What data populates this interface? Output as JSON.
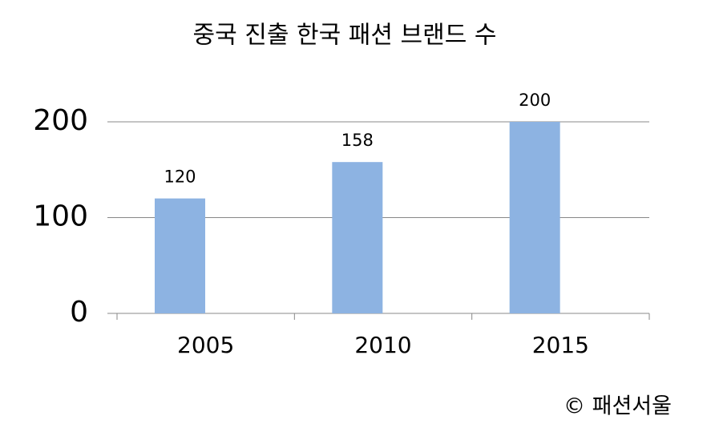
{
  "chart_data": {
    "type": "bar",
    "title": "중국 진출 한국 패션 브랜드 수",
    "categories": [
      "2005",
      "2010",
      "2015"
    ],
    "values": [
      120,
      158,
      200
    ],
    "color": "#8db3e2",
    "ylim": [
      0,
      200
    ],
    "yticks": [
      0,
      100,
      200
    ],
    "grid": true,
    "source": "© 패션서울"
  }
}
